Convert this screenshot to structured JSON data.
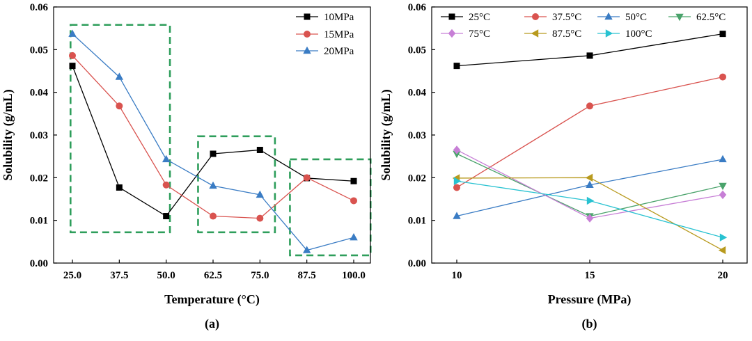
{
  "chart_data": [
    {
      "type": "line",
      "panel_label": "(a)",
      "xlabel": "Temperature (°C)",
      "ylabel": "Solubility (g/mL)",
      "categories": [
        "25.0",
        "37.5",
        "50.0",
        "62.5",
        "75.0",
        "87.5",
        "100.0"
      ],
      "ylim": [
        0,
        0.06
      ],
      "yticks": [
        "0.00",
        "0.01",
        "0.02",
        "0.03",
        "0.04",
        "0.05",
        "0.06"
      ],
      "legend_position": "top-right",
      "series": [
        {
          "name": "10MPa",
          "color": "#000000",
          "marker": "square",
          "values": [
            0.0462,
            0.0177,
            0.011,
            0.0256,
            0.0265,
            0.0199,
            0.0192
          ]
        },
        {
          "name": "15MPa",
          "color": "#d9534f",
          "marker": "circle",
          "values": [
            0.0486,
            0.0368,
            0.0183,
            0.011,
            0.0105,
            0.02,
            0.0146
          ]
        },
        {
          "name": "20MPa",
          "color": "#3a7cc4",
          "marker": "triangle",
          "values": [
            0.0537,
            0.0436,
            0.0243,
            0.0181,
            0.016,
            0.003,
            0.006
          ]
        }
      ],
      "highlight_boxes": [
        {
          "x_from": 24.5,
          "x_to": 51.0,
          "y_from": 0.0072,
          "y_to": 0.0558
        },
        {
          "x_from": 58.5,
          "x_to": 79.0,
          "y_from": 0.0072,
          "y_to": 0.0297
        },
        {
          "x_from": 83.0,
          "x_to": 104.5,
          "y_from": 0.0018,
          "y_to": 0.0243
        }
      ]
    },
    {
      "type": "line",
      "panel_label": "(b)",
      "xlabel": "Pressure (MPa)",
      "ylabel": "Solubility (g/mL)",
      "x": [
        10,
        15,
        20
      ],
      "xticks": [
        "10",
        "15",
        "20"
      ],
      "ylim": [
        0,
        0.06
      ],
      "yticks": [
        "0.00",
        "0.01",
        "0.02",
        "0.03",
        "0.04",
        "0.05",
        "0.06"
      ],
      "legend_position": "top",
      "series": [
        {
          "name": "25°C",
          "color": "#000000",
          "marker": "square",
          "values": [
            0.0462,
            0.0486,
            0.0537
          ]
        },
        {
          "name": "37.5°C",
          "color": "#d9534f",
          "marker": "circle",
          "values": [
            0.0177,
            0.0368,
            0.0436
          ]
        },
        {
          "name": "50°C",
          "color": "#3a7cc4",
          "marker": "triangle",
          "values": [
            0.011,
            0.0183,
            0.0243
          ]
        },
        {
          "name": "62.5°C",
          "color": "#4aa36b",
          "marker": "triangle-down",
          "values": [
            0.0256,
            0.011,
            0.0181
          ]
        },
        {
          "name": "75°C",
          "color": "#c77fd6",
          "marker": "diamond",
          "values": [
            0.0265,
            0.0105,
            0.016
          ]
        },
        {
          "name": "87.5°C",
          "color": "#b89a1e",
          "marker": "triangle-left",
          "values": [
            0.0199,
            0.02,
            0.003
          ]
        },
        {
          "name": "100°C",
          "color": "#28c2d1",
          "marker": "triangle-right",
          "values": [
            0.0192,
            0.0146,
            0.006
          ]
        }
      ]
    }
  ]
}
